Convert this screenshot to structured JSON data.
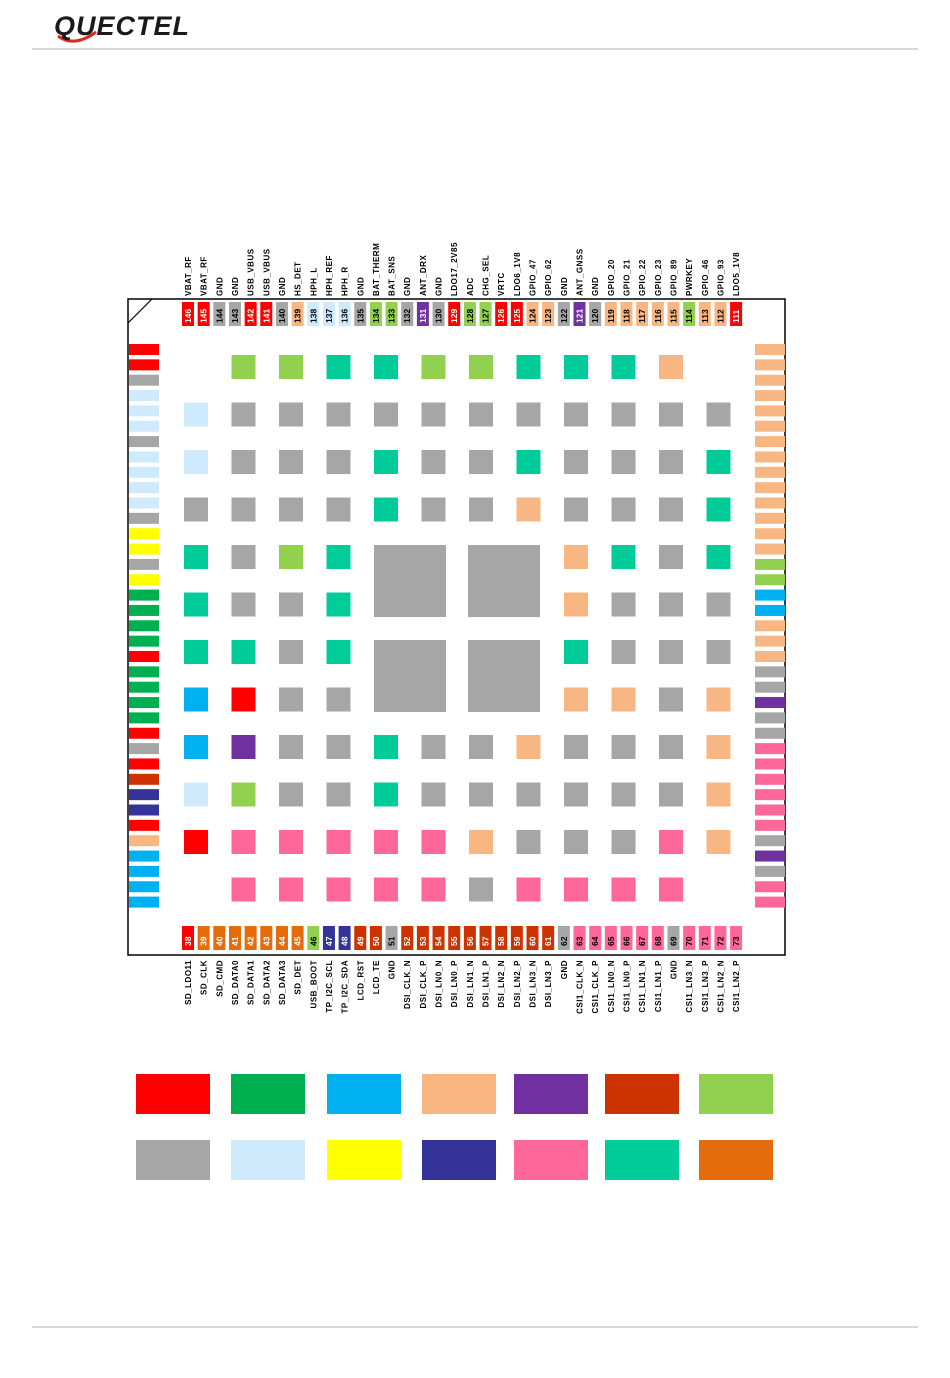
{
  "header": {
    "logo_text": "QUECTEL"
  },
  "colors": {
    "red": "#ff0000",
    "green": "#00b050",
    "blue": "#00b0f0",
    "peach": "#f8b782",
    "purple": "#7030a0",
    "rust": "#cc3300",
    "lime": "#92d050",
    "gray": "#a6a6a6",
    "lightblue": "#cfeafc",
    "yellow": "#ffff00",
    "navy": "#333399",
    "pink": "#ff6699",
    "teal": "#00cc99",
    "orange": "#e46c0a"
  },
  "pins": {
    "top": [
      {
        "n": "146",
        "label": "VBAT_RF",
        "c": "red"
      },
      {
        "n": "145",
        "label": "VBAT_RF",
        "c": "red"
      },
      {
        "n": "144",
        "label": "GND",
        "c": "gray"
      },
      {
        "n": "143",
        "label": "GND",
        "c": "gray"
      },
      {
        "n": "142",
        "label": "USB_VBUS",
        "c": "red"
      },
      {
        "n": "141",
        "label": "USB_VBUS",
        "c": "red"
      },
      {
        "n": "140",
        "label": "GND",
        "c": "gray"
      },
      {
        "n": "139",
        "label": "HS_DET",
        "c": "peach"
      },
      {
        "n": "138",
        "label": "HPH_L",
        "c": "lightblue"
      },
      {
        "n": "137",
        "label": "HPH_REF",
        "c": "lightblue"
      },
      {
        "n": "136",
        "label": "HPH_R",
        "c": "lightblue"
      },
      {
        "n": "135",
        "label": "GND",
        "c": "gray"
      },
      {
        "n": "134",
        "label": "BAT_THERM",
        "c": "lime"
      },
      {
        "n": "133",
        "label": "BAT_SNS",
        "c": "lime"
      },
      {
        "n": "132",
        "label": "GND",
        "c": "gray"
      },
      {
        "n": "131",
        "label": "ANT_DRX",
        "c": "purple"
      },
      {
        "n": "130",
        "label": "GND",
        "c": "gray"
      },
      {
        "n": "129",
        "label": "LDO17_2V85",
        "c": "red"
      },
      {
        "n": "128",
        "label": "ADC",
        "c": "lime"
      },
      {
        "n": "127",
        "label": "CHG_SEL",
        "c": "lime"
      },
      {
        "n": "126",
        "label": "VRTC",
        "c": "red"
      },
      {
        "n": "125",
        "label": "LDO6_1V8",
        "c": "red"
      },
      {
        "n": "124",
        "label": "GPIO_47",
        "c": "peach"
      },
      {
        "n": "123",
        "label": "GPIO_62",
        "c": "peach"
      },
      {
        "n": "122",
        "label": "GND",
        "c": "gray"
      },
      {
        "n": "121",
        "label": "ANT_GNSS",
        "c": "purple"
      },
      {
        "n": "120",
        "label": "GND",
        "c": "gray"
      },
      {
        "n": "119",
        "label": "GPIO_20",
        "c": "peach"
      },
      {
        "n": "118",
        "label": "GPIO_21",
        "c": "peach"
      },
      {
        "n": "117",
        "label": "GPIO_22",
        "c": "peach"
      },
      {
        "n": "116",
        "label": "GPIO_23",
        "c": "peach"
      },
      {
        "n": "115",
        "label": "GPIO_89",
        "c": "peach"
      },
      {
        "n": "114",
        "label": "PWRKEY",
        "c": "lime"
      },
      {
        "n": "113",
        "label": "GPIO_46",
        "c": "peach"
      },
      {
        "n": "112",
        "label": "GPIO_93",
        "c": "peach"
      },
      {
        "n": "111",
        "label": "LDO5_1V8",
        "c": "red"
      }
    ],
    "bottom": [
      {
        "n": "38",
        "label": "SD_LDO11",
        "c": "red"
      },
      {
        "n": "39",
        "label": "SD_CLK",
        "c": "orange"
      },
      {
        "n": "40",
        "label": "SD_CMD",
        "c": "orange"
      },
      {
        "n": "41",
        "label": "SD_DATA0",
        "c": "orange"
      },
      {
        "n": "42",
        "label": "SD_DATA1",
        "c": "orange"
      },
      {
        "n": "43",
        "label": "SD_DATA2",
        "c": "orange"
      },
      {
        "n": "44",
        "label": "SD_DATA3",
        "c": "orange"
      },
      {
        "n": "45",
        "label": "SD_DET",
        "c": "orange"
      },
      {
        "n": "46",
        "label": "USB_BOOT",
        "c": "lime"
      },
      {
        "n": "47",
        "label": "TP_I2C_SCL",
        "c": "navy"
      },
      {
        "n": "48",
        "label": "TP_I2C_SDA",
        "c": "navy"
      },
      {
        "n": "49",
        "label": "LCD_RST",
        "c": "rust"
      },
      {
        "n": "50",
        "label": "LCD_TE",
        "c": "rust"
      },
      {
        "n": "51",
        "label": "GND",
        "c": "gray"
      },
      {
        "n": "52",
        "label": "DSI_CLK_N",
        "c": "rust"
      },
      {
        "n": "53",
        "label": "DSI_CLK_P",
        "c": "rust"
      },
      {
        "n": "54",
        "label": "DSI_LN0_N",
        "c": "rust"
      },
      {
        "n": "55",
        "label": "DSI_LN0_P",
        "c": "rust"
      },
      {
        "n": "56",
        "label": "DSI_LN1_N",
        "c": "rust"
      },
      {
        "n": "57",
        "label": "DSI_LN1_P",
        "c": "rust"
      },
      {
        "n": "58",
        "label": "DSI_LN2_N",
        "c": "rust"
      },
      {
        "n": "59",
        "label": "DSI_LN2_P",
        "c": "rust"
      },
      {
        "n": "60",
        "label": "DSI_LN3_N",
        "c": "rust"
      },
      {
        "n": "61",
        "label": "DSI_LN3_P",
        "c": "rust"
      },
      {
        "n": "62",
        "label": "GND",
        "c": "gray"
      },
      {
        "n": "63",
        "label": "CSI1_CLK_N",
        "c": "pink"
      },
      {
        "n": "64",
        "label": "CSI1_CLK_P",
        "c": "pink"
      },
      {
        "n": "65",
        "label": "CSI1_LN0_N",
        "c": "pink"
      },
      {
        "n": "66",
        "label": "CSI1_LN0_P",
        "c": "pink"
      },
      {
        "n": "67",
        "label": "CSI1_LN1_N",
        "c": "pink"
      },
      {
        "n": "68",
        "label": "CSI1_LN1_P",
        "c": "pink"
      },
      {
        "n": "69",
        "label": "GND",
        "c": "gray"
      },
      {
        "n": "70",
        "label": "CSI1_LN3_N",
        "c": "pink"
      },
      {
        "n": "71",
        "label": "CSI1_LN3_P",
        "c": "pink"
      },
      {
        "n": "72",
        "label": "CSI1_LN2_N",
        "c": "pink"
      },
      {
        "n": "73",
        "label": "CSI1_LN2_P",
        "c": "pink"
      }
    ],
    "left": [
      "red",
      "red",
      "gray",
      "lightblue",
      "lightblue",
      "lightblue",
      "gray",
      "lightblue",
      "lightblue",
      "lightblue",
      "lightblue",
      "gray",
      "yellow",
      "yellow",
      "gray",
      "yellow",
      "green",
      "green",
      "green",
      "green",
      "red",
      "green",
      "green",
      "green",
      "green",
      "red",
      "gray",
      "red",
      "rust",
      "navy",
      "navy",
      "red",
      "peach",
      "blue",
      "blue",
      "blue",
      "blue"
    ],
    "right": [
      "peach",
      "peach",
      "peach",
      "peach",
      "peach",
      "peach",
      "peach",
      "peach",
      "peach",
      "peach",
      "peach",
      "peach",
      "peach",
      "peach",
      "lime",
      "lime",
      "blue",
      "blue",
      "peach",
      "peach",
      "peach",
      "gray",
      "gray",
      "purple",
      "gray",
      "gray",
      "pink",
      "pink",
      "pink",
      "pink",
      "pink",
      "pink",
      "gray",
      "purple",
      "gray",
      "pink",
      "pink"
    ]
  },
  "inner_pads": [
    [
      null,
      "lime",
      "lime",
      "teal",
      "teal",
      "lime",
      "lime",
      "teal",
      "teal",
      "teal",
      "peach",
      null
    ],
    [
      "lightblue",
      "gray",
      "gray",
      "gray",
      "gray",
      "gray",
      "gray",
      "gray",
      "gray",
      "gray",
      "gray",
      "gray"
    ],
    [
      "lightblue",
      "gray",
      "gray",
      "gray",
      "teal",
      "gray",
      "gray",
      "teal",
      "gray",
      "gray",
      "gray",
      "teal"
    ],
    [
      "gray",
      "gray",
      "gray",
      "gray",
      "teal",
      "gray",
      "gray",
      "peach",
      "gray",
      "gray",
      "gray",
      "teal"
    ],
    [
      "teal",
      "gray",
      "lime",
      "teal",
      null,
      null,
      null,
      null,
      "peach",
      "teal",
      "gray",
      "teal"
    ],
    [
      "teal",
      "gray",
      "gray",
      "teal",
      null,
      null,
      null,
      null,
      "peach",
      "gray",
      "gray",
      "gray"
    ],
    [
      "teal",
      "teal",
      "gray",
      "teal",
      null,
      null,
      null,
      null,
      "teal",
      "gray",
      "gray",
      "gray"
    ],
    [
      "blue",
      "red",
      "gray",
      "gray",
      null,
      null,
      null,
      null,
      "peach",
      "peach",
      "gray",
      "peach"
    ],
    [
      "blue",
      "purple",
      "gray",
      "gray",
      "teal",
      "gray",
      "gray",
      "peach",
      "gray",
      "gray",
      "gray",
      "peach"
    ],
    [
      "lightblue",
      "lime",
      "gray",
      "gray",
      "teal",
      "gray",
      "gray",
      "gray",
      "gray",
      "gray",
      "gray",
      "peach"
    ],
    [
      "red",
      "pink",
      "pink",
      "pink",
      "pink",
      "pink",
      "peach",
      "gray",
      "gray",
      "gray",
      "pink",
      "peach"
    ],
    [
      null,
      "pink",
      "pink",
      "pink",
      "pink",
      "pink",
      "gray",
      "pink",
      "pink",
      "pink",
      "pink",
      null
    ]
  ],
  "legend": [
    "red",
    "green",
    "blue",
    "peach",
    "purple",
    "rust",
    "lime",
    "gray",
    "lightblue",
    "yellow",
    "navy",
    "pink",
    "teal",
    "orange"
  ]
}
